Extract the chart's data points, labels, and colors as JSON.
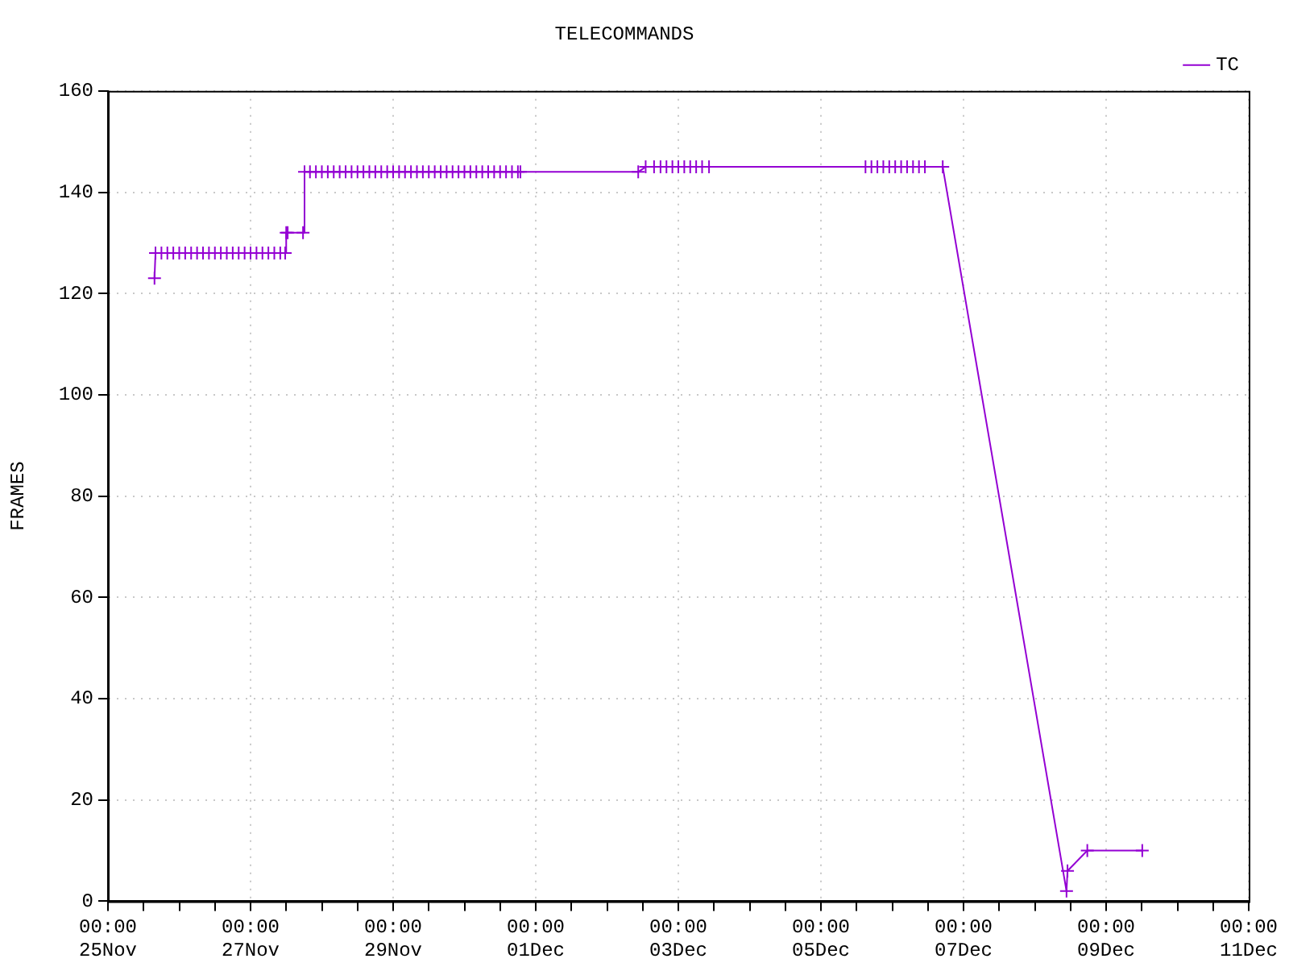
{
  "chart_data": {
    "type": "line",
    "title": "TELECOMMANDS",
    "ylabel": "FRAMES",
    "xlim": [
      "--11-25T00:00",
      "--12-11T00:00"
    ],
    "xticks": [
      {
        "value": "--11-25T00:00",
        "label": "00:00\n25Nov"
      },
      {
        "value": "--11-25T12:00",
        "label": null
      },
      {
        "value": "--11-26T00:00",
        "label": null
      },
      {
        "value": "--11-26T12:00",
        "label": null
      },
      {
        "value": "--11-27T00:00",
        "label": "00:00\n27Nov"
      },
      {
        "value": "--11-27T12:00",
        "label": null
      },
      {
        "value": "--11-28T00:00",
        "label": null
      },
      {
        "value": "--11-28T12:00",
        "label": null
      },
      {
        "value": "--11-29T00:00",
        "label": "00:00\n29Nov"
      },
      {
        "value": "--11-29T12:00",
        "label": null
      },
      {
        "value": "--11-30T00:00",
        "label": null
      },
      {
        "value": "--11-30T12:00",
        "label": null
      },
      {
        "value": "--12-01T00:00",
        "label": "00:00\n01Dec"
      },
      {
        "value": "--12-01T12:00",
        "label": null
      },
      {
        "value": "--12-02T00:00",
        "label": null
      },
      {
        "value": "--12-02T12:00",
        "label": null
      },
      {
        "value": "--12-03T00:00",
        "label": "00:00\n03Dec"
      },
      {
        "value": "--12-03T12:00",
        "label": null
      },
      {
        "value": "--12-04T00:00",
        "label": null
      },
      {
        "value": "--12-04T12:00",
        "label": null
      },
      {
        "value": "--12-05T00:00",
        "label": "00:00\n05Dec"
      },
      {
        "value": "--12-05T12:00",
        "label": null
      },
      {
        "value": "--12-06T00:00",
        "label": null
      },
      {
        "value": "--12-06T12:00",
        "label": null
      },
      {
        "value": "--12-07T00:00",
        "label": "00:00\n07Dec"
      },
      {
        "value": "--12-07T12:00",
        "label": null
      },
      {
        "value": "--12-08T00:00",
        "label": null
      },
      {
        "value": "--12-08T12:00",
        "label": null
      },
      {
        "value": "--12-09T00:00",
        "label": "00:00\n09Dec"
      },
      {
        "value": "--12-09T12:00",
        "label": null
      },
      {
        "value": "--12-10T00:00",
        "label": null
      },
      {
        "value": "--12-10T12:00",
        "label": null
      },
      {
        "value": "--12-11T00:00",
        "label": "00:00\n11Dec"
      }
    ],
    "ylim": [
      0,
      160
    ],
    "yticks": [
      0,
      20,
      40,
      60,
      80,
      100,
      120,
      140,
      160
    ],
    "grid": true,
    "legend": "top right",
    "marker": "cross",
    "line_style": "solid",
    "series": [
      {
        "name": "TC",
        "color": "#9400d3",
        "x": [
          "--11-25T15:40",
          "--11-25T16:00",
          "--11-25T18:00",
          "--11-25T20:00",
          "--11-25T22:00",
          "--11-26T00:00",
          "--11-26T02:00",
          "--11-26T04:00",
          "--11-26T06:00",
          "--11-26T08:00",
          "--11-26T10:00",
          "--11-26T12:00",
          "--11-26T14:00",
          "--11-26T16:00",
          "--11-26T18:00",
          "--11-26T20:00",
          "--11-26T22:00",
          "--11-27T00:00",
          "--11-27T02:00",
          "--11-27T04:00",
          "--11-27T06:00",
          "--11-27T08:00",
          "--11-27T10:00",
          "--11-27T11:40",
          "--11-27T12:00",
          "--11-27T12:30",
          "--11-27T17:40",
          "--11-27T18:10",
          "--11-27T20:00",
          "--11-27T22:00",
          "--11-28T00:00",
          "--11-28T02:00",
          "--11-28T04:00",
          "--11-28T06:00",
          "--11-28T08:00",
          "--11-28T10:00",
          "--11-28T12:00",
          "--11-28T14:00",
          "--11-28T16:00",
          "--11-28T18:00",
          "--11-28T20:00",
          "--11-28T22:00",
          "--11-29T00:00",
          "--11-29T02:00",
          "--11-29T04:00",
          "--11-29T06:00",
          "--11-29T08:00",
          "--11-29T10:00",
          "--11-29T12:00",
          "--11-29T14:00",
          "--11-29T16:00",
          "--11-29T18:00",
          "--11-29T20:00",
          "--11-29T22:00",
          "--11-30T00:00",
          "--11-30T02:00",
          "--11-30T04:00",
          "--11-30T06:00",
          "--11-30T08:00",
          "--11-30T10:00",
          "--11-30T12:00",
          "--11-30T14:00",
          "--11-30T16:00",
          "--11-30T18:00",
          "--11-30T18:50",
          "--12-02T10:30",
          "--12-02T13:00",
          "--12-02T15:50",
          "--12-02T18:00",
          "--12-02T20:00",
          "--12-02T22:00",
          "--12-03T00:00",
          "--12-03T02:00",
          "--12-03T04:00",
          "--12-03T06:00",
          "--12-03T08:00",
          "--12-03T10:20",
          "--12-05T15:00",
          "--12-05T17:00",
          "--12-05T19:00",
          "--12-05T21:00",
          "--12-05T23:00",
          "--12-06T01:00",
          "--12-06T03:00",
          "--12-06T05:00",
          "--12-06T07:00",
          "--12-06T09:00",
          "--12-06T11:00",
          "--12-06T17:00",
          "--12-08T10:40",
          "--12-08T11:00",
          "--12-08T17:40",
          "--12-09T12:10"
        ],
        "values": [
          123,
          128,
          128,
          128,
          128,
          128,
          128,
          128,
          128,
          128,
          128,
          128,
          128,
          128,
          128,
          128,
          128,
          128,
          128,
          128,
          128,
          128,
          128,
          128,
          132,
          132,
          132,
          144,
          144,
          144,
          144,
          144,
          144,
          144,
          144,
          144,
          144,
          144,
          144,
          144,
          144,
          144,
          144,
          144,
          144,
          144,
          144,
          144,
          144,
          144,
          144,
          144,
          144,
          144,
          144,
          144,
          144,
          144,
          144,
          144,
          144,
          144,
          144,
          144,
          144,
          144,
          145,
          145,
          145,
          145,
          145,
          145,
          145,
          145,
          145,
          145,
          145,
          145,
          145,
          145,
          145,
          145,
          145,
          145,
          145,
          145,
          145,
          145,
          145,
          2,
          6,
          10,
          10
        ]
      }
    ]
  }
}
